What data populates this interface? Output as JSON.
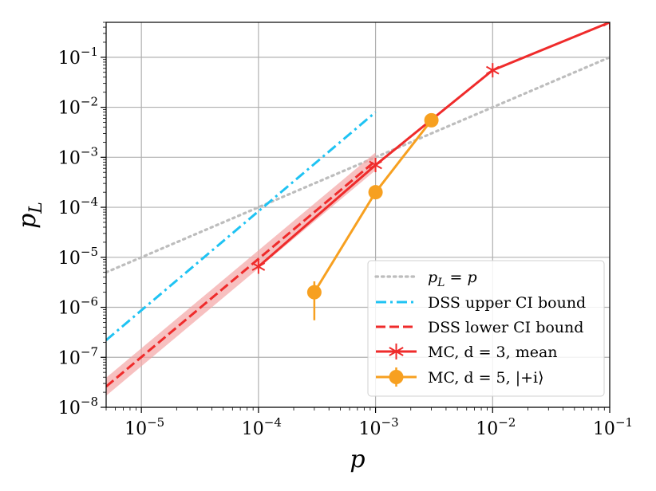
{
  "chart_data": {
    "type": "line",
    "title": "",
    "xlabel": "p",
    "ylabel": "p_L",
    "xscale": "log",
    "yscale": "log",
    "xlim": [
      5e-06,
      0.1
    ],
    "ylim": [
      1e-08,
      0.5
    ],
    "grid": true,
    "legend_position": "lower-right",
    "x_ticks": [
      {
        "value": 1e-05,
        "base": "10",
        "exp": "−5"
      },
      {
        "value": 0.0001,
        "base": "10",
        "exp": "−4"
      },
      {
        "value": 0.001,
        "base": "10",
        "exp": "−3"
      },
      {
        "value": 0.01,
        "base": "10",
        "exp": "−2"
      },
      {
        "value": 0.1,
        "base": "10",
        "exp": "−1"
      }
    ],
    "y_ticks": [
      {
        "value": 1e-08,
        "base": "10",
        "exp": "−8"
      },
      {
        "value": 1e-07,
        "base": "10",
        "exp": "−7"
      },
      {
        "value": 1e-06,
        "base": "10",
        "exp": "−6"
      },
      {
        "value": 1e-05,
        "base": "10",
        "exp": "−5"
      },
      {
        "value": 0.0001,
        "base": "10",
        "exp": "−4"
      },
      {
        "value": 0.001,
        "base": "10",
        "exp": "−3"
      },
      {
        "value": 0.01,
        "base": "10",
        "exp": "−2"
      },
      {
        "value": 0.1,
        "base": "10",
        "exp": "−1"
      }
    ],
    "series": [
      {
        "name": "p_L = p",
        "legend_label": "p_L = p",
        "style": "dotted",
        "color": "#bdbdbd",
        "x": [
          5e-06,
          0.1
        ],
        "y": [
          5e-06,
          0.1
        ]
      },
      {
        "name": "DSS upper CI bound",
        "legend_label": "DSS upper CI bound",
        "style": "dashdot",
        "color": "#1fc3f3",
        "x": [
          5e-06,
          0.001
        ],
        "y": [
          2.2e-07,
          0.008
        ]
      },
      {
        "name": "DSS lower CI bound",
        "legend_label": "DSS lower CI bound",
        "style": "dashed",
        "color": "#ef2b2b",
        "band_color": "#f4a5a5",
        "x": [
          5e-06,
          0.001
        ],
        "y": [
          2.6e-08,
          0.00085
        ],
        "band_lower": [
          1.7e-08,
          0.00055
        ],
        "band_upper": [
          3.9e-08,
          0.00125
        ]
      },
      {
        "name": "MC, d = 3, mean",
        "legend_label": "MC, d = 3, mean",
        "style": "solid",
        "marker": "asterisk",
        "color": "#ef2b2b",
        "x": [
          0.0001,
          0.001,
          0.01,
          0.1
        ],
        "y": [
          6.5e-06,
          0.0007,
          0.055,
          0.5
        ]
      },
      {
        "name": "MC, d = 5, |+i⟩",
        "legend_label": "MC, d = 5, |+i⟩",
        "style": "solid",
        "marker": "circle",
        "color": "#f7a020",
        "x": [
          0.0003,
          0.001,
          0.003
        ],
        "y": [
          2e-06,
          0.0002,
          0.0055
        ],
        "y_err_low": [
          5.5e-07,
          0.00018,
          0.0052
        ],
        "y_err_high": [
          3.3e-06,
          0.00022,
          0.0058
        ]
      }
    ]
  }
}
